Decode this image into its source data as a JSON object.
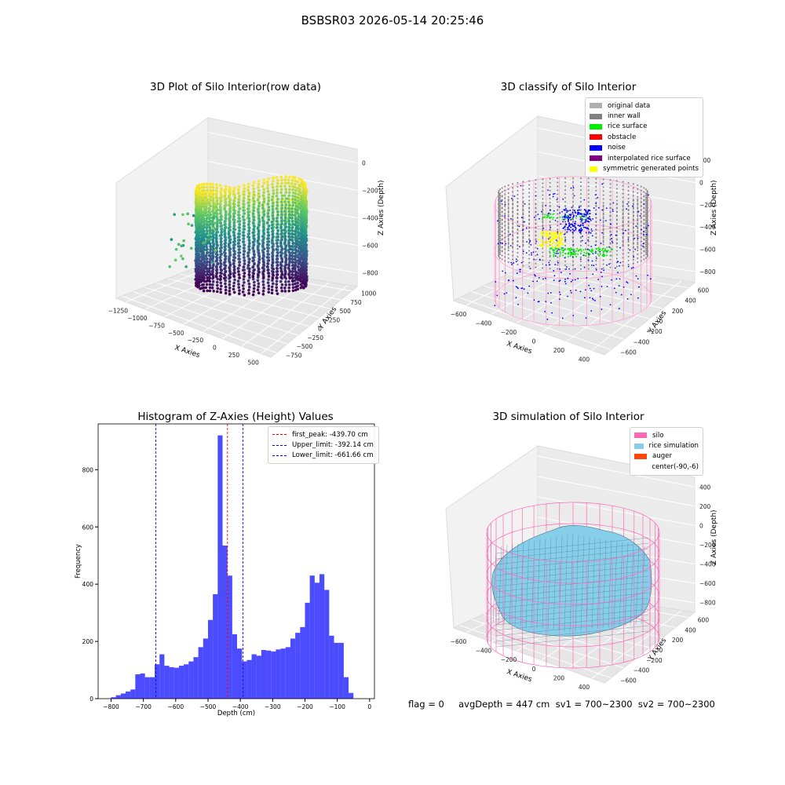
{
  "suptitle": "BSBSR03 2026-05-14 20:25:46",
  "chart_data": [
    {
      "type": "scatter",
      "title": "3D Plot of Silo Interior(row data)",
      "xlabel": "X Axies",
      "ylabel": "Y Axies",
      "zlabel": "Z Axies (Depth)",
      "x_ticks": [
        "−1250",
        "−1000",
        "−750",
        "−500",
        "−250",
        "0",
        "250",
        "500"
      ],
      "y_ticks": [
        "−750",
        "−500",
        "−250",
        "0",
        "250",
        "500",
        "750",
        "1000"
      ],
      "z_ticks": [
        "0",
        "−200",
        "−400",
        "−600",
        "−800"
      ],
      "colormap": "viridis"
    },
    {
      "type": "scatter",
      "title": "3D classify of Silo Interior",
      "xlabel": "X Axies",
      "ylabel": "Y Axies",
      "zlabel": "Z Axies (Depth)",
      "x_ticks": [
        "−600",
        "−400",
        "−200",
        "0",
        "200",
        "400"
      ],
      "y_ticks": [
        "−600",
        "−400",
        "−200",
        "0",
        "200",
        "400",
        "600"
      ],
      "z_ticks": [
        "200",
        "0",
        "−200",
        "−400",
        "−600",
        "−800"
      ],
      "legend": [
        {
          "label": "original data",
          "color": "#b0b0b0"
        },
        {
          "label": "inner wall",
          "color": "#808080"
        },
        {
          "label": "rice surface",
          "color": "#00ee00"
        },
        {
          "label": "obstacle",
          "color": "#ff0000"
        },
        {
          "label": "noise",
          "color": "#0000ff"
        },
        {
          "label": "interpolated rice surface",
          "color": "#800080"
        },
        {
          "label": "symmetric generated points",
          "color": "#ffff00"
        }
      ]
    },
    {
      "type": "bar",
      "title": "Histogram of Z-Axies (Height) Values",
      "xlabel": "Depth (cm)",
      "ylabel": "Frequency",
      "xlim": [
        -840,
        15
      ],
      "ylim": [
        0,
        960
      ],
      "x_ticks": [
        -800,
        -700,
        -600,
        -500,
        -400,
        -300,
        -200,
        -100,
        0
      ],
      "y_ticks": [
        0,
        200,
        400,
        600,
        800
      ],
      "bar_color": "#0000ff",
      "bins": [
        {
          "x0": -800,
          "x1": -785,
          "v": 5
        },
        {
          "x0": -785,
          "x1": -770,
          "v": 12
        },
        {
          "x0": -770,
          "x1": -755,
          "v": 18
        },
        {
          "x0": -755,
          "x1": -740,
          "v": 25
        },
        {
          "x0": -740,
          "x1": -725,
          "v": 32
        },
        {
          "x0": -725,
          "x1": -710,
          "v": 85
        },
        {
          "x0": -710,
          "x1": -695,
          "v": 88
        },
        {
          "x0": -695,
          "x1": -680,
          "v": 75
        },
        {
          "x0": -680,
          "x1": -665,
          "v": 75
        },
        {
          "x0": -665,
          "x1": -650,
          "v": 120
        },
        {
          "x0": -650,
          "x1": -635,
          "v": 155
        },
        {
          "x0": -635,
          "x1": -620,
          "v": 115
        },
        {
          "x0": -620,
          "x1": -605,
          "v": 110
        },
        {
          "x0": -605,
          "x1": -590,
          "v": 108
        },
        {
          "x0": -590,
          "x1": -575,
          "v": 115
        },
        {
          "x0": -575,
          "x1": -560,
          "v": 120
        },
        {
          "x0": -560,
          "x1": -545,
          "v": 130
        },
        {
          "x0": -545,
          "x1": -530,
          "v": 145
        },
        {
          "x0": -530,
          "x1": -515,
          "v": 180
        },
        {
          "x0": -515,
          "x1": -500,
          "v": 210
        },
        {
          "x0": -500,
          "x1": -485,
          "v": 275
        },
        {
          "x0": -485,
          "x1": -470,
          "v": 365
        },
        {
          "x0": -470,
          "x1": -455,
          "v": 920
        },
        {
          "x0": -455,
          "x1": -440,
          "v": 535
        },
        {
          "x0": -440,
          "x1": -425,
          "v": 430
        },
        {
          "x0": -425,
          "x1": -410,
          "v": 225
        },
        {
          "x0": -410,
          "x1": -395,
          "v": 175
        },
        {
          "x0": -395,
          "x1": -380,
          "v": 130
        },
        {
          "x0": -380,
          "x1": -365,
          "v": 135
        },
        {
          "x0": -365,
          "x1": -350,
          "v": 155
        },
        {
          "x0": -350,
          "x1": -335,
          "v": 150
        },
        {
          "x0": -335,
          "x1": -320,
          "v": 170
        },
        {
          "x0": -320,
          "x1": -305,
          "v": 168
        },
        {
          "x0": -305,
          "x1": -290,
          "v": 165
        },
        {
          "x0": -290,
          "x1": -275,
          "v": 172
        },
        {
          "x0": -275,
          "x1": -260,
          "v": 175
        },
        {
          "x0": -260,
          "x1": -245,
          "v": 180
        },
        {
          "x0": -245,
          "x1": -230,
          "v": 210
        },
        {
          "x0": -230,
          "x1": -215,
          "v": 230
        },
        {
          "x0": -215,
          "x1": -200,
          "v": 250
        },
        {
          "x0": -200,
          "x1": -185,
          "v": 335
        },
        {
          "x0": -185,
          "x1": -170,
          "v": 430
        },
        {
          "x0": -170,
          "x1": -155,
          "v": 405
        },
        {
          "x0": -155,
          "x1": -140,
          "v": 435
        },
        {
          "x0": -140,
          "x1": -125,
          "v": 380
        },
        {
          "x0": -125,
          "x1": -110,
          "v": 220
        },
        {
          "x0": -110,
          "x1": -95,
          "v": 195
        },
        {
          "x0": -95,
          "x1": -80,
          "v": 195
        },
        {
          "x0": -80,
          "x1": -65,
          "v": 75
        },
        {
          "x0": -65,
          "x1": -50,
          "v": 20
        }
      ],
      "vlines": [
        {
          "x": -439.7,
          "color": "#ff0000",
          "label": "first_peak: -439.70 cm"
        },
        {
          "x": -392.14,
          "color": "#0000ff",
          "label": "Upper_limit: -392.14 cm"
        },
        {
          "x": -661.66,
          "color": "#0000ff",
          "label": "Lower_limit: -661.66 cm"
        }
      ]
    },
    {
      "type": "area",
      "title": "3D simulation of Silo Interior",
      "xlabel": "X Axies",
      "ylabel": "Y Axies",
      "zlabel": "Z Axies (Depth)",
      "x_ticks": [
        "−600",
        "−400",
        "−200",
        "0",
        "200",
        "400"
      ],
      "y_ticks": [
        "−600",
        "−400",
        "−200",
        "0",
        "200",
        "400",
        "600"
      ],
      "z_ticks": [
        "400",
        "200",
        "0",
        "−200",
        "−400",
        "−600",
        "−800"
      ],
      "legend": [
        {
          "label": "silo",
          "color": "#ff69b4"
        },
        {
          "label": "rice simulation",
          "color": "#87ceeb"
        },
        {
          "label": "auger",
          "color": "#ff4500"
        },
        {
          "label": "center(-90,-6)",
          "color": "#ffffff"
        }
      ]
    }
  ],
  "footer": {
    "text": "flag = 0     avgDepth = 447 cm  sv1 = 700~2300  sv2 = 700~2300"
  }
}
